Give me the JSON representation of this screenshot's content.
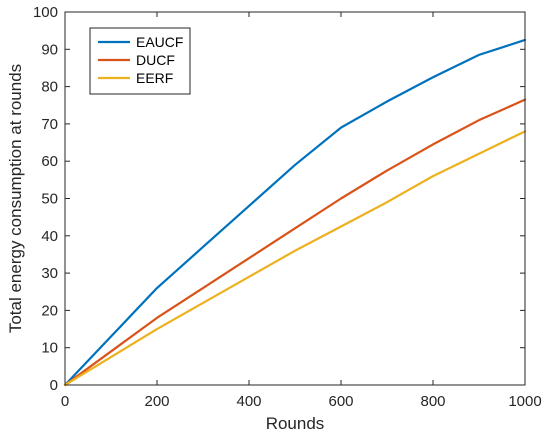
{
  "chart_data": {
    "type": "line",
    "xlabel": "Rounds",
    "ylabel": "Total energy consumption at rounds",
    "xlim": [
      0,
      1000
    ],
    "ylim": [
      0,
      100
    ],
    "xticks": [
      0,
      200,
      400,
      600,
      800,
      1000
    ],
    "yticks": [
      0,
      10,
      20,
      30,
      40,
      50,
      60,
      70,
      80,
      90,
      100
    ],
    "grid": false,
    "legend_position": "top-left",
    "x": [
      0,
      100,
      200,
      300,
      400,
      500,
      600,
      700,
      800,
      900,
      1000
    ],
    "series": [
      {
        "name": "EAUCF",
        "color": "#0072BD",
        "values": [
          0,
          13,
          26,
          37,
          48,
          59,
          69,
          76,
          82.5,
          88.5,
          92.5
        ]
      },
      {
        "name": "DUCF",
        "color": "#D95319",
        "values": [
          0,
          9,
          18,
          26,
          34,
          42,
          50,
          57.5,
          64.5,
          71,
          76.5
        ]
      },
      {
        "name": "EERF",
        "color": "#EDB120",
        "values": [
          0,
          7.5,
          15,
          22,
          29,
          36,
          42.5,
          49,
          56,
          62,
          68
        ]
      }
    ]
  }
}
